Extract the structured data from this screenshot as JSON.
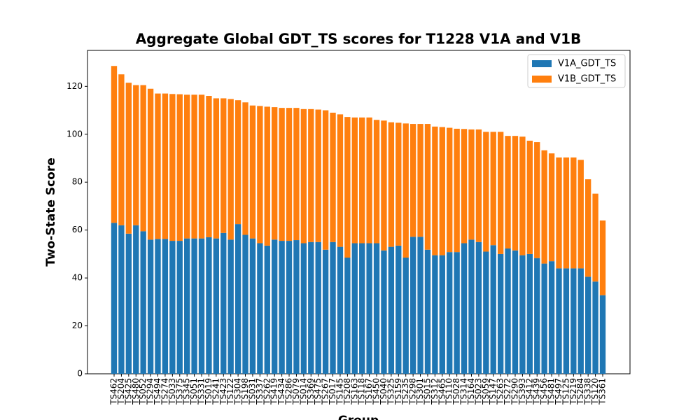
{
  "chart_data": {
    "type": "stacked_bar",
    "title": "Aggregate Global GDT_TS scores for T1228 V1A and V1B",
    "x_label": "Group",
    "y_label": "Two-State Score",
    "categories": [
      "TS462",
      "TS204",
      "TS425",
      "TS480",
      "TS052",
      "TS294",
      "TS494",
      "TS274",
      "TS033",
      "TS375",
      "TS345",
      "TS051",
      "TS331",
      "TS019",
      "TS241",
      "TS423",
      "TS122",
      "TS304",
      "TS198",
      "TS031",
      "TS337",
      "TS262",
      "TS419",
      "TS434",
      "TS286",
      "TS079",
      "TS014",
      "TS369",
      "TS475",
      "TS267",
      "TS017",
      "TS145",
      "TS208",
      "TS163",
      "TS118",
      "TS167",
      "TS450",
      "TS040",
      "TS325",
      "TS159",
      "TS235",
      "TS298",
      "TS301",
      "TS015",
      "TS312",
      "TS465",
      "TS110",
      "TS028",
      "TS314",
      "TS164",
      "TS023",
      "TS059",
      "TS147",
      "TS263",
      "TS272",
      "TS290",
      "TS393",
      "TS412",
      "TS439",
      "TS456",
      "TS481",
      "TS497",
      "TS125",
      "TS219",
      "TS284",
      "TS338",
      "TS120",
      "TS361"
    ],
    "series": [
      {
        "name": "V1A_GDT_TS",
        "color": "#1f77b4",
        "values": [
          63,
          62,
          58.5,
          62,
          59.5,
          56,
          56.3,
          56.3,
          55.5,
          55.5,
          56.5,
          56.5,
          56.5,
          57,
          56.5,
          58.8,
          56,
          62.5,
          58,
          56.5,
          54.5,
          53.5,
          56,
          55.5,
          55.5,
          55.8,
          54.5,
          55,
          55,
          51.8,
          55,
          53,
          48.5,
          54.5,
          54.5,
          54.5,
          54.5,
          51.5,
          53,
          53.5,
          48.5,
          57.2,
          57.2,
          51.8,
          49.5,
          49.5,
          50.8,
          50.8,
          54.5,
          56,
          55,
          51,
          53.7,
          50,
          52.3,
          51.5,
          49.5,
          50,
          48.3,
          46,
          47,
          44,
          44,
          44,
          44,
          40.5,
          38.5,
          32.8
        ]
      },
      {
        "name": "V1B_GDT_TS",
        "color": "#ff7f0e",
        "values": [
          65.5,
          63,
          63,
          58.5,
          61,
          63,
          60.7,
          60.7,
          61.3,
          61.2,
          60,
          60,
          60,
          59,
          58.5,
          56.2,
          58.7,
          51.7,
          55.3,
          55.5,
          57.3,
          58,
          55.3,
          55.5,
          55.5,
          55.2,
          56,
          55.5,
          55.3,
          58.2,
          54,
          55.3,
          58.7,
          52.5,
          52.5,
          52.5,
          51.5,
          54.2,
          52,
          51.3,
          56,
          47.1,
          47.1,
          52.5,
          53.7,
          53.5,
          51.9,
          51.5,
          47.7,
          46,
          47,
          50,
          47.3,
          51,
          47,
          47.8,
          49.5,
          47.3,
          48.4,
          47.3,
          45,
          46.3,
          46.3,
          46.3,
          45.3,
          40.7,
          36.7,
          31.2
        ]
      }
    ],
    "ylim": [
      0,
      135
    ],
    "yticks": [
      0,
      20,
      40,
      60,
      80,
      100,
      120
    ],
    "legend": "upper right"
  }
}
